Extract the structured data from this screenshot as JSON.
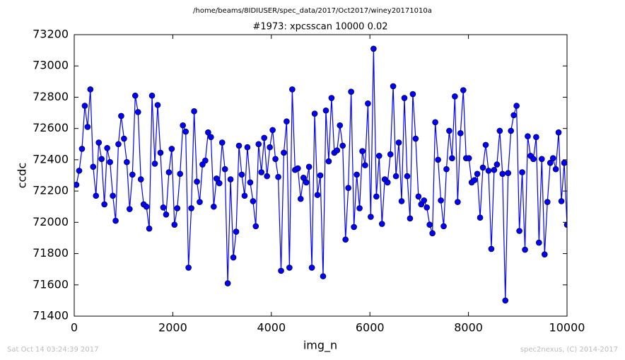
{
  "chart_data": {
    "type": "line",
    "suptitle": "/home/beams/8IDIUSER/spec_data/2017/Oct2017/winey20171010a",
    "title": "#1973: xpcsscan 10000 0.02",
    "xlabel": "img_n",
    "ylabel": "ccdc",
    "footer_left": "Sat Oct 14 03:24:39 2017",
    "footer_right": "spec2nexus, (C) 2014-2017",
    "xlim": [
      0,
      10000
    ],
    "xticks": [
      0,
      2000,
      4000,
      6000,
      8000,
      10000
    ],
    "ylim": [
      71400,
      73200
    ],
    "yticks": [
      71400,
      71600,
      71800,
      72000,
      72200,
      72400,
      72600,
      72800,
      73000,
      73200
    ],
    "grid": false,
    "x": [
      43,
      100,
      157,
      214,
      271,
      327,
      384,
      441,
      498,
      555,
      612,
      669,
      726,
      783,
      840,
      896,
      953,
      1010,
      1067,
      1124,
      1181,
      1238,
      1295,
      1352,
      1409,
      1465,
      1522,
      1579,
      1636,
      1693,
      1750,
      1807,
      1864,
      1921,
      1978,
      2034,
      2091,
      2148,
      2205,
      2262,
      2319,
      2376,
      2433,
      2490,
      2546,
      2603,
      2660,
      2717,
      2774,
      2831,
      2888,
      2945,
      3002,
      3059,
      3115,
      3172,
      3229,
      3286,
      3343,
      3400,
      3457,
      3514,
      3571,
      3628,
      3684,
      3741,
      3798,
      3855,
      3912,
      3969,
      4026,
      4083,
      4140,
      4197,
      4253,
      4310,
      4367,
      4424,
      4481,
      4538,
      4595,
      4652,
      4709,
      4765,
      4822,
      4879,
      4936,
      4993,
      5050,
      5107,
      5164,
      5221,
      5278,
      5334,
      5391,
      5448,
      5505,
      5562,
      5619,
      5676,
      5733,
      5790,
      5847,
      5903,
      5960,
      6017,
      6074,
      6131,
      6188,
      6245,
      6302,
      6359,
      6416,
      6472,
      6529,
      6586,
      6643,
      6700,
      6757,
      6814,
      6871,
      6928,
      6985,
      7041,
      7098,
      7155,
      7212,
      7269,
      7326,
      7383,
      7440,
      7497,
      7553,
      7610,
      7667,
      7724,
      7781,
      7838,
      7895,
      7952,
      8009,
      8066,
      8122,
      8179,
      8236,
      8293,
      8350,
      8407,
      8464,
      8521,
      8578,
      8635,
      8691,
      8748,
      8805,
      8862,
      8919,
      8976,
      9033,
      9090,
      9147,
      9203,
      9260,
      9317,
      9374,
      9431,
      9488,
      9545,
      9602,
      9659,
      9716,
      9772,
      9829,
      9886,
      9943,
      10000
    ],
    "series": [
      {
        "name": "ccdc",
        "color": "#0000ff",
        "values": [
          72240,
          72330,
          72470,
          72745,
          72610,
          72850,
          72355,
          72170,
          72510,
          72405,
          72115,
          72475,
          72385,
          72170,
          72010,
          72500,
          72680,
          72535,
          72385,
          72085,
          72305,
          72810,
          72705,
          72275,
          72115,
          72100,
          71960,
          72810,
          72375,
          72750,
          72445,
          72095,
          72050,
          72320,
          72470,
          71985,
          72090,
          72310,
          72620,
          72580,
          71710,
          72090,
          72710,
          72260,
          72130,
          72370,
          72395,
          72575,
          72545,
          72100,
          72280,
          72250,
          72510,
          72340,
          71610,
          72275,
          71775,
          71940,
          72490,
          72305,
          72170,
          72480,
          72255,
          72135,
          71975,
          72500,
          72320,
          72540,
          72295,
          72480,
          72590,
          72405,
          72290,
          71690,
          72445,
          72645,
          71710,
          72850,
          72335,
          72345,
          72150,
          72285,
          72255,
          72355,
          71710,
          72695,
          72175,
          72300,
          71655,
          72715,
          72390,
          72795,
          72445,
          72460,
          72620,
          72490,
          71890,
          72220,
          72835,
          71970,
          72305,
          72090,
          72455,
          72365,
          72760,
          72035,
          73110,
          72165,
          72425,
          71990,
          72275,
          72255,
          72435,
          72870,
          72295,
          72510,
          72135,
          72795,
          72295,
          72025,
          72820,
          72535,
          72165,
          72115,
          72140,
          72095,
          71985,
          71930,
          72640,
          72400,
          72140,
          71975,
          72340,
          72585,
          72410,
          72805,
          72130,
          72570,
          72845,
          72410,
          72410,
          72255,
          72270,
          72310,
          72030,
          72350,
          72495,
          72330,
          71830,
          72335,
          72370,
          72585,
          72310,
          71500,
          72315,
          72585,
          72685,
          72745,
          71945,
          72320,
          71825,
          72550,
          72425,
          72405,
          72545,
          71870,
          72405,
          71795,
          72130,
          72380,
          72410,
          72340,
          72575,
          72135,
          72380,
          71985
        ]
      }
    ]
  }
}
